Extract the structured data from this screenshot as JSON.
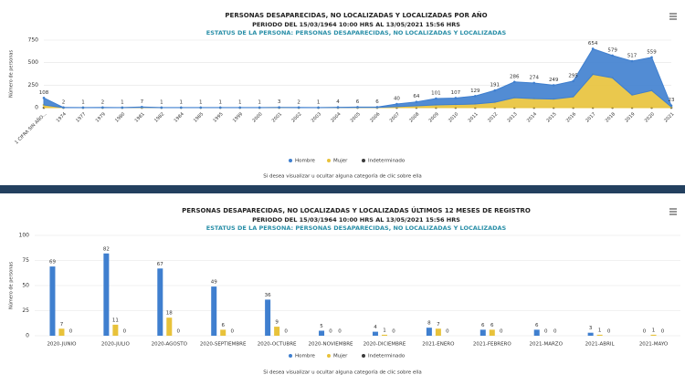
{
  "chart_data": [
    {
      "type": "area",
      "title": "PERSONAS DESAPARECIDAS, NO LOCALIZADAS Y LOCALIZADAS POR AÑO",
      "subtitle": "PERIODO DEL 15/03/1964 10:00 HRS AL 13/05/2021 15:56 HRS",
      "status": "ESTATUS DE LA PERSONA: PERSONAS DESAPARECIDAS, NO LOCALIZADAS Y LOCALIZADAS",
      "ylabel": "Número de personas",
      "note": "Si desea visualizar u ocultar alguna categoría de clic sobre ella",
      "categories": [
        "1 CIFRA SIN AÑO...",
        "1974",
        "1977",
        "1979",
        "1980",
        "1981",
        "1982",
        "1984",
        "1985",
        "1995",
        "1999",
        "2000",
        "2001",
        "2002",
        "2003",
        "2004",
        "2005",
        "2006",
        "2007",
        "2008",
        "2009",
        "2010",
        "2011",
        "2012",
        "2013",
        "2014",
        "2015",
        "2016",
        "2017",
        "2018",
        "2019",
        "2020",
        "2021"
      ],
      "totals": [
        108,
        2,
        1,
        2,
        1,
        7,
        1,
        1,
        1,
        1,
        1,
        1,
        3,
        2,
        1,
        4,
        6,
        6,
        40,
        64,
        101,
        107,
        129,
        191,
        286,
        274,
        249,
        295,
        654,
        579,
        517,
        559,
        23
      ],
      "series": [
        {
          "name": "Hombre",
          "color": "#3f7fcf",
          "values": [
            78,
            2,
            1,
            2,
            1,
            5,
            1,
            1,
            1,
            1,
            1,
            1,
            2,
            2,
            1,
            3,
            4,
            4,
            28,
            44,
            71,
            72,
            89,
            131,
            176,
            174,
            154,
            175,
            284,
            249,
            377,
            369,
            15
          ]
        },
        {
          "name": "Mujer",
          "color": "#e8c23a",
          "values": [
            30,
            0,
            0,
            0,
            0,
            2,
            0,
            0,
            0,
            0,
            0,
            0,
            1,
            0,
            0,
            1,
            2,
            2,
            12,
            20,
            30,
            35,
            40,
            60,
            110,
            100,
            95,
            120,
            370,
            330,
            140,
            190,
            8
          ]
        },
        {
          "name": "Indeterminado",
          "color": "#3b3b3b",
          "values": [
            0,
            0,
            0,
            0,
            0,
            0,
            0,
            0,
            0,
            0,
            0,
            0,
            0,
            0,
            0,
            0,
            0,
            0,
            0,
            0,
            0,
            0,
            0,
            0,
            0,
            0,
            0,
            0,
            0,
            0,
            0,
            0,
            0
          ]
        }
      ],
      "ylim": [
        0,
        750
      ],
      "yticks": [
        0,
        250,
        500,
        750
      ],
      "grid": true
    },
    {
      "type": "bar",
      "title": "PERSONAS DESAPARECIDAS, NO LOCALIZADAS Y LOCALIZADAS ÚLTIMOS 12 MESES DE REGISTRO",
      "subtitle": "PERIODO DEL 15/03/1964 10:00 HRS AL 13/05/2021 15:56 HRS",
      "status": "ESTATUS DE LA PERSONA: PERSONAS DESAPARECIDAS, NO LOCALIZADAS Y LOCALIZADAS",
      "ylabel": "Número de personas",
      "note": "Si desea visualizar u ocultar alguna categoría de clic sobre ella",
      "categories": [
        "2020-JUNIO",
        "2020-JULIO",
        "2020-AGOSTO",
        "2020-SEPTIEMBRE",
        "2020-OCTUBRE",
        "2020-NOVIEMBRE",
        "2020-DICIEMBRE",
        "2021-ENERO",
        "2021-FEBRERO",
        "2021-MARZO",
        "2021-ABRIL",
        "2021-MAYO"
      ],
      "series": [
        {
          "name": "Hombre",
          "color": "#3f7fcf",
          "values": [
            69,
            82,
            67,
            49,
            36,
            5,
            4,
            8,
            6,
            6,
            3,
            0
          ]
        },
        {
          "name": "Mujer",
          "color": "#e8c23a",
          "values": [
            7,
            11,
            18,
            6,
            9,
            0,
            1,
            7,
            6,
            0,
            1,
            1
          ]
        },
        {
          "name": "Indeterminado",
          "color": "#3b3b3b",
          "values": [
            0,
            0,
            0,
            0,
            0,
            0,
            0,
            0,
            0,
            0,
            0,
            0
          ]
        }
      ],
      "ylim": [
        0,
        100
      ],
      "yticks": [
        0,
        25,
        50,
        75,
        100
      ],
      "grid": true
    }
  ]
}
